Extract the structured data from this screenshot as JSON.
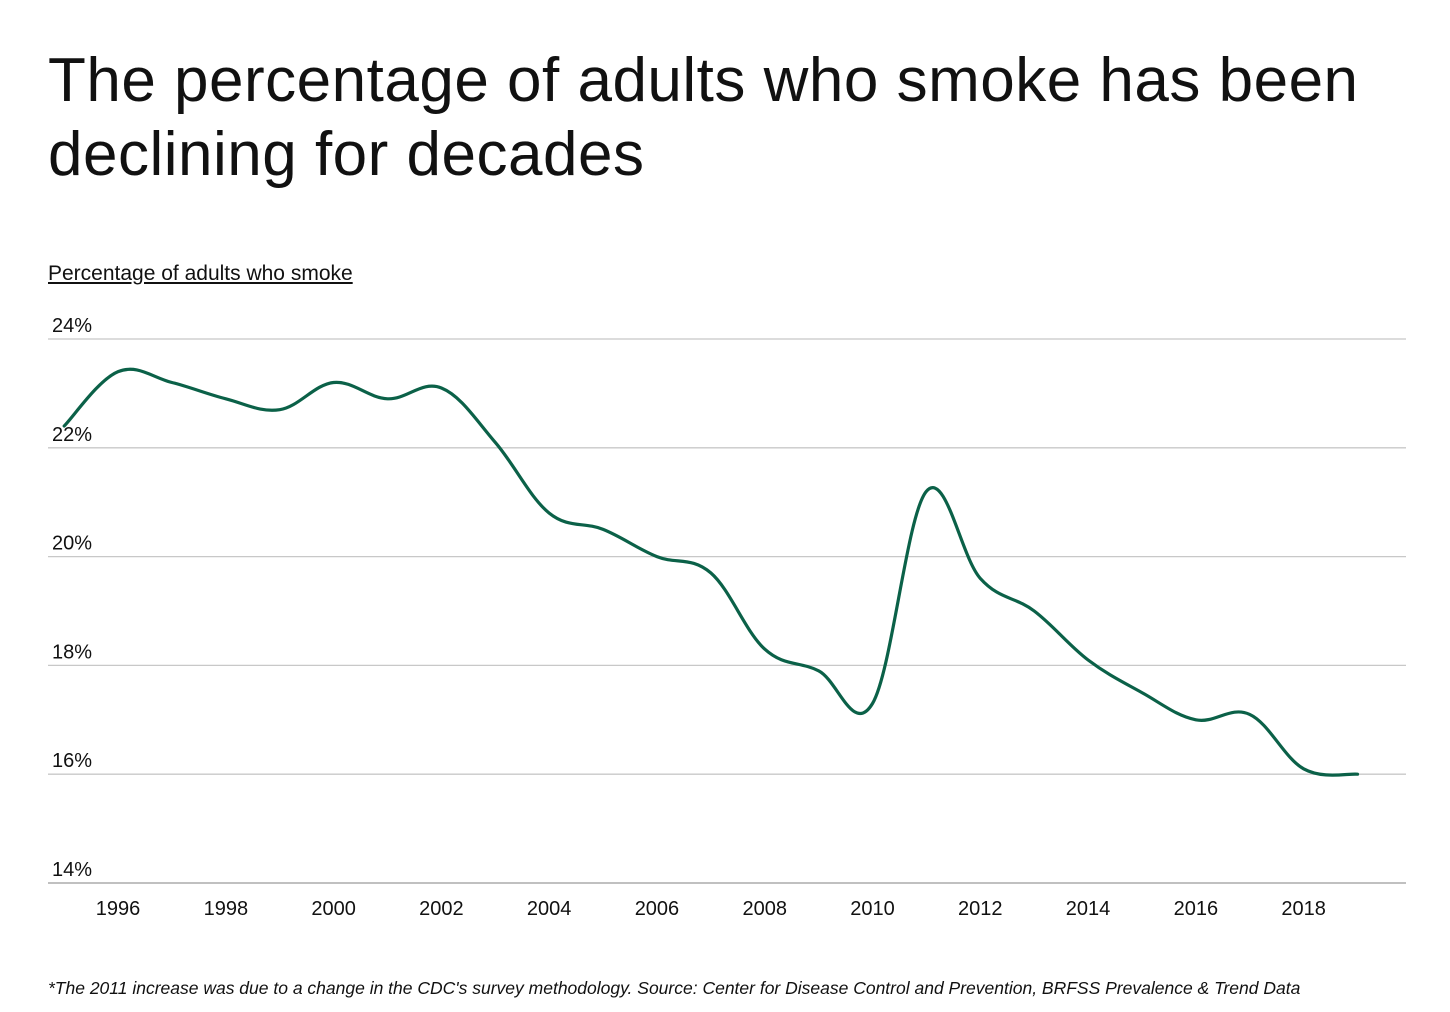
{
  "chart_data": {
    "type": "line",
    "title": "The percentage of adults who smoke has been declining for decades",
    "ylabel": "Percentage of adults who smoke",
    "xlabel": "",
    "ylim": [
      14,
      24
    ],
    "xlim": [
      1994.7,
      2019.9
    ],
    "y_ticks": [
      {
        "value": 24,
        "label": "24%"
      },
      {
        "value": 22,
        "label": "22%"
      },
      {
        "value": 20,
        "label": "20%"
      },
      {
        "value": 18,
        "label": "18%"
      },
      {
        "value": 16,
        "label": "16%"
      },
      {
        "value": 14,
        "label": "14%"
      }
    ],
    "x_ticks": [
      {
        "value": 1996,
        "label": "1996"
      },
      {
        "value": 1998,
        "label": "1998"
      },
      {
        "value": 2000,
        "label": "2000"
      },
      {
        "value": 2002,
        "label": "2002"
      },
      {
        "value": 2004,
        "label": "2004"
      },
      {
        "value": 2006,
        "label": "2006"
      },
      {
        "value": 2008,
        "label": "2008"
      },
      {
        "value": 2010,
        "label": "2010"
      },
      {
        "value": 2012,
        "label": "2012"
      },
      {
        "value": 2014,
        "label": "2014"
      },
      {
        "value": 2016,
        "label": "2016"
      },
      {
        "value": 2018,
        "label": "2018"
      }
    ],
    "grid": true,
    "line_color": "#0b6148",
    "series": [
      {
        "x": [
          1995,
          1996,
          1997,
          1998,
          1999,
          2000,
          2001,
          2002,
          2003,
          2004,
          2005,
          2006,
          2007,
          2008,
          2009,
          2010,
          2011,
          2012,
          2013,
          2014,
          2015,
          2016,
          2017,
          2018,
          2019
        ],
        "values": [
          22.4,
          23.4,
          23.2,
          22.9,
          22.7,
          23.2,
          22.9,
          23.1,
          22.1,
          20.8,
          20.5,
          20.0,
          19.7,
          18.3,
          17.9,
          17.3,
          21.2,
          19.6,
          19.0,
          18.1,
          17.5,
          17.0,
          17.1,
          16.1,
          16.0
        ]
      }
    ]
  },
  "footnote": "*The 2011 increase was due to a change in the CDC's survey methodology. Source:  Center for Disease Control and Prevention, BRFSS Prevalence & Trend Data"
}
